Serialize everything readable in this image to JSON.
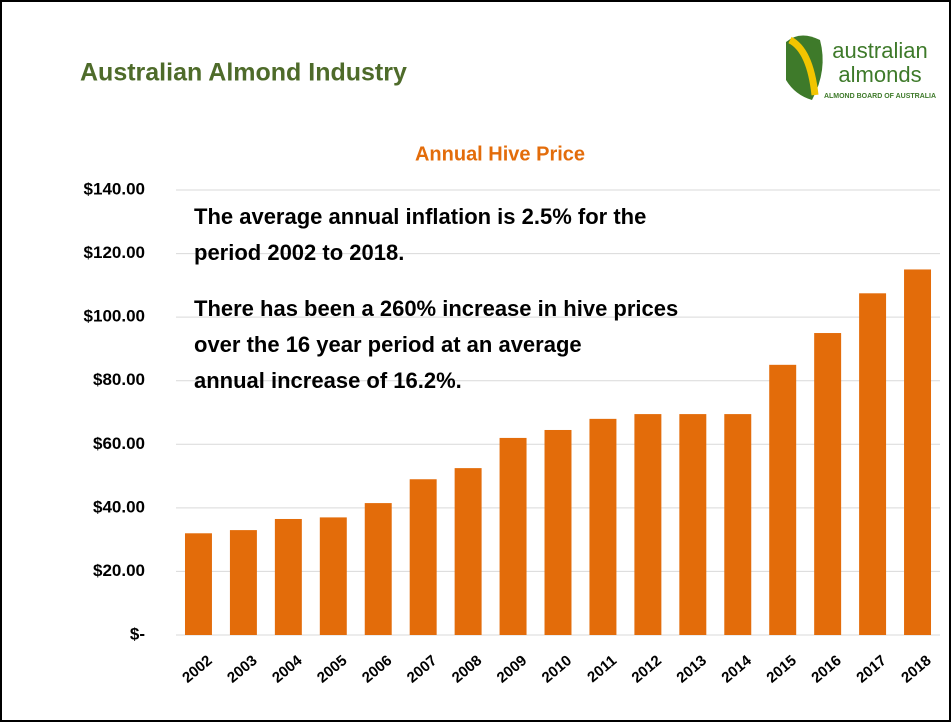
{
  "header": {
    "title": "Australian Almond Industry",
    "logo": [
      "australian",
      "almonds",
      "ALMOND BOARD OF AUSTRALIA"
    ]
  },
  "chart_data": {
    "type": "bar",
    "title": "Annual Hive Price",
    "annotations": [
      [
        "The average annual inflation is 2.5% for the",
        "period 2002 to 2018."
      ],
      [
        "There has been a 260% increase in hive prices",
        "over the 16 year period at an average",
        "annual increase of 16.2%."
      ]
    ],
    "categories": [
      "2002",
      "2003",
      "2004",
      "2005",
      "2006",
      "2007",
      "2008",
      "2009",
      "2010",
      "2011",
      "2012",
      "2013",
      "2014",
      "2015",
      "2016",
      "2017",
      "2018"
    ],
    "values": [
      32,
      33,
      36.5,
      37,
      41.5,
      49,
      52.5,
      62,
      64.5,
      68,
      69.5,
      69.5,
      69.5,
      85,
      95,
      107.5,
      115
    ],
    "color": "#e36c0a",
    "ylim": [
      0,
      140
    ],
    "yticks": [
      {
        "value": 0,
        "label": "$-"
      },
      {
        "value": 20,
        "label": "$20.00"
      },
      {
        "value": 40,
        "label": "$40.00"
      },
      {
        "value": 60,
        "label": "$60.00"
      },
      {
        "value": 80,
        "label": "$80.00"
      },
      {
        "value": 100,
        "label": "$100.00"
      },
      {
        "value": 120,
        "label": "$120.00"
      },
      {
        "value": 140,
        "label": "$140.00"
      }
    ],
    "grid": true
  }
}
